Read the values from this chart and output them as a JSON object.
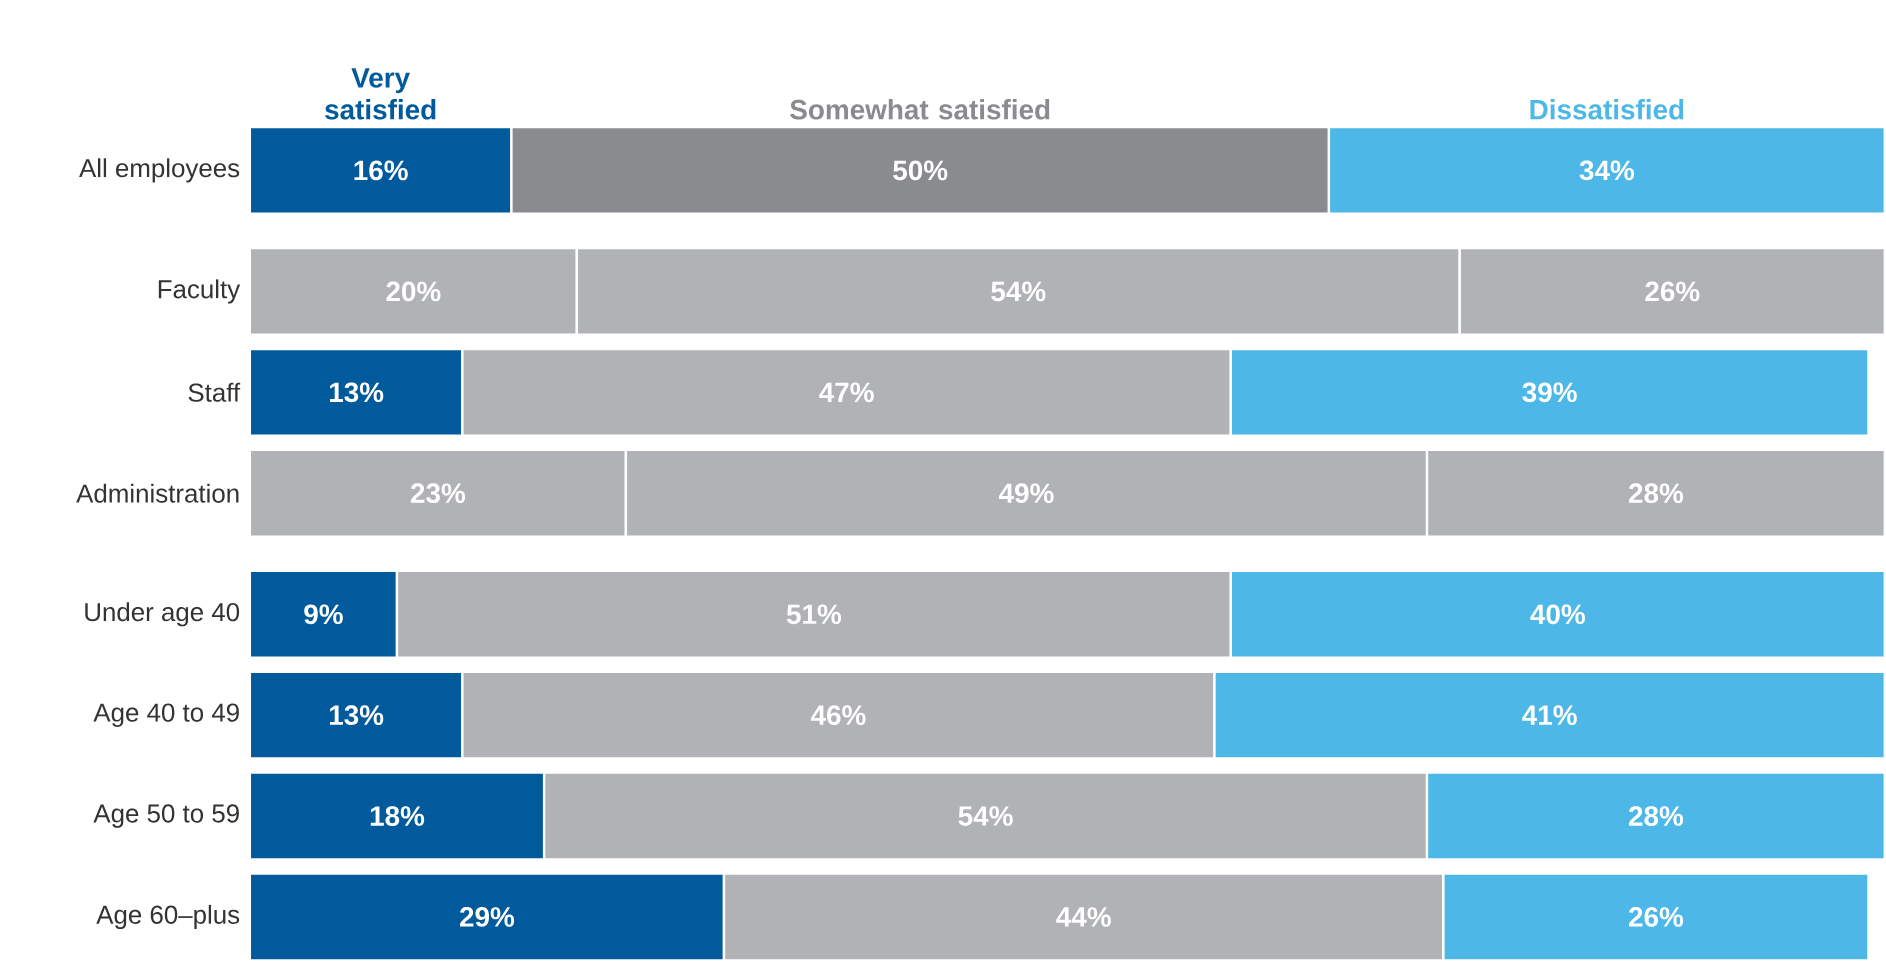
{
  "chart_data": {
    "type": "bar",
    "orientation": "horizontal",
    "stacked": true,
    "legend": "top",
    "tick_labels": "y",
    "categories": [
      "All employees",
      null,
      "Faculty",
      "Staff",
      "Administration",
      null,
      "Under age 40",
      "Age 40 to 49",
      "Age 50 to 59",
      "Age 60–plus"
    ],
    "series": [
      {
        "name": "Very satisfied",
        "color": "#005a9c",
        "values": [
          16,
          null,
          20,
          13,
          23,
          null,
          9,
          13,
          18,
          29
        ],
        "colors": [
          "#005a9c",
          null,
          "#b1b2b5",
          "#005a9c",
          "#b1b2b5",
          null,
          "#005a9c",
          "#005a9c",
          "#005a9c",
          "#005a9c"
        ],
        "value_labels": [
          "16%",
          null,
          "20%",
          "13%",
          "23%",
          null,
          "9%",
          "13%",
          "18%",
          "29%"
        ]
      },
      {
        "name": "Somewhat satisfied",
        "color": "#8a8b8f",
        "values": [
          50,
          null,
          54,
          47,
          49,
          null,
          51,
          46,
          54,
          44
        ],
        "colors": [
          "#8a8b8f",
          null,
          "#b1b2b5",
          "#b1b2b5",
          "#b1b2b5",
          null,
          "#b1b2b5",
          "#b1b2b5",
          "#b1b2b5",
          "#b1b2b5"
        ],
        "value_labels": [
          "50%",
          null,
          "54%",
          "47%",
          "49%",
          null,
          "51%",
          "46%",
          "54%",
          "44%"
        ]
      },
      {
        "name": "Dissatisfied",
        "color": "#4db8e8",
        "values": [
          34,
          null,
          26,
          39,
          28,
          null,
          40,
          41,
          28,
          26
        ],
        "colors": [
          "#4db8e8",
          null,
          "#b1b2b5",
          "#4db8e8",
          "#b1b2b5",
          null,
          "#4db8e8",
          "#4db8e8",
          "#4db8e8",
          "#4db8e8"
        ],
        "value_labels": [
          "34%",
          null,
          "26%",
          "39%",
          "28%",
          null,
          "40%",
          "41%",
          "28%",
          "26%"
        ]
      }
    ]
  }
}
